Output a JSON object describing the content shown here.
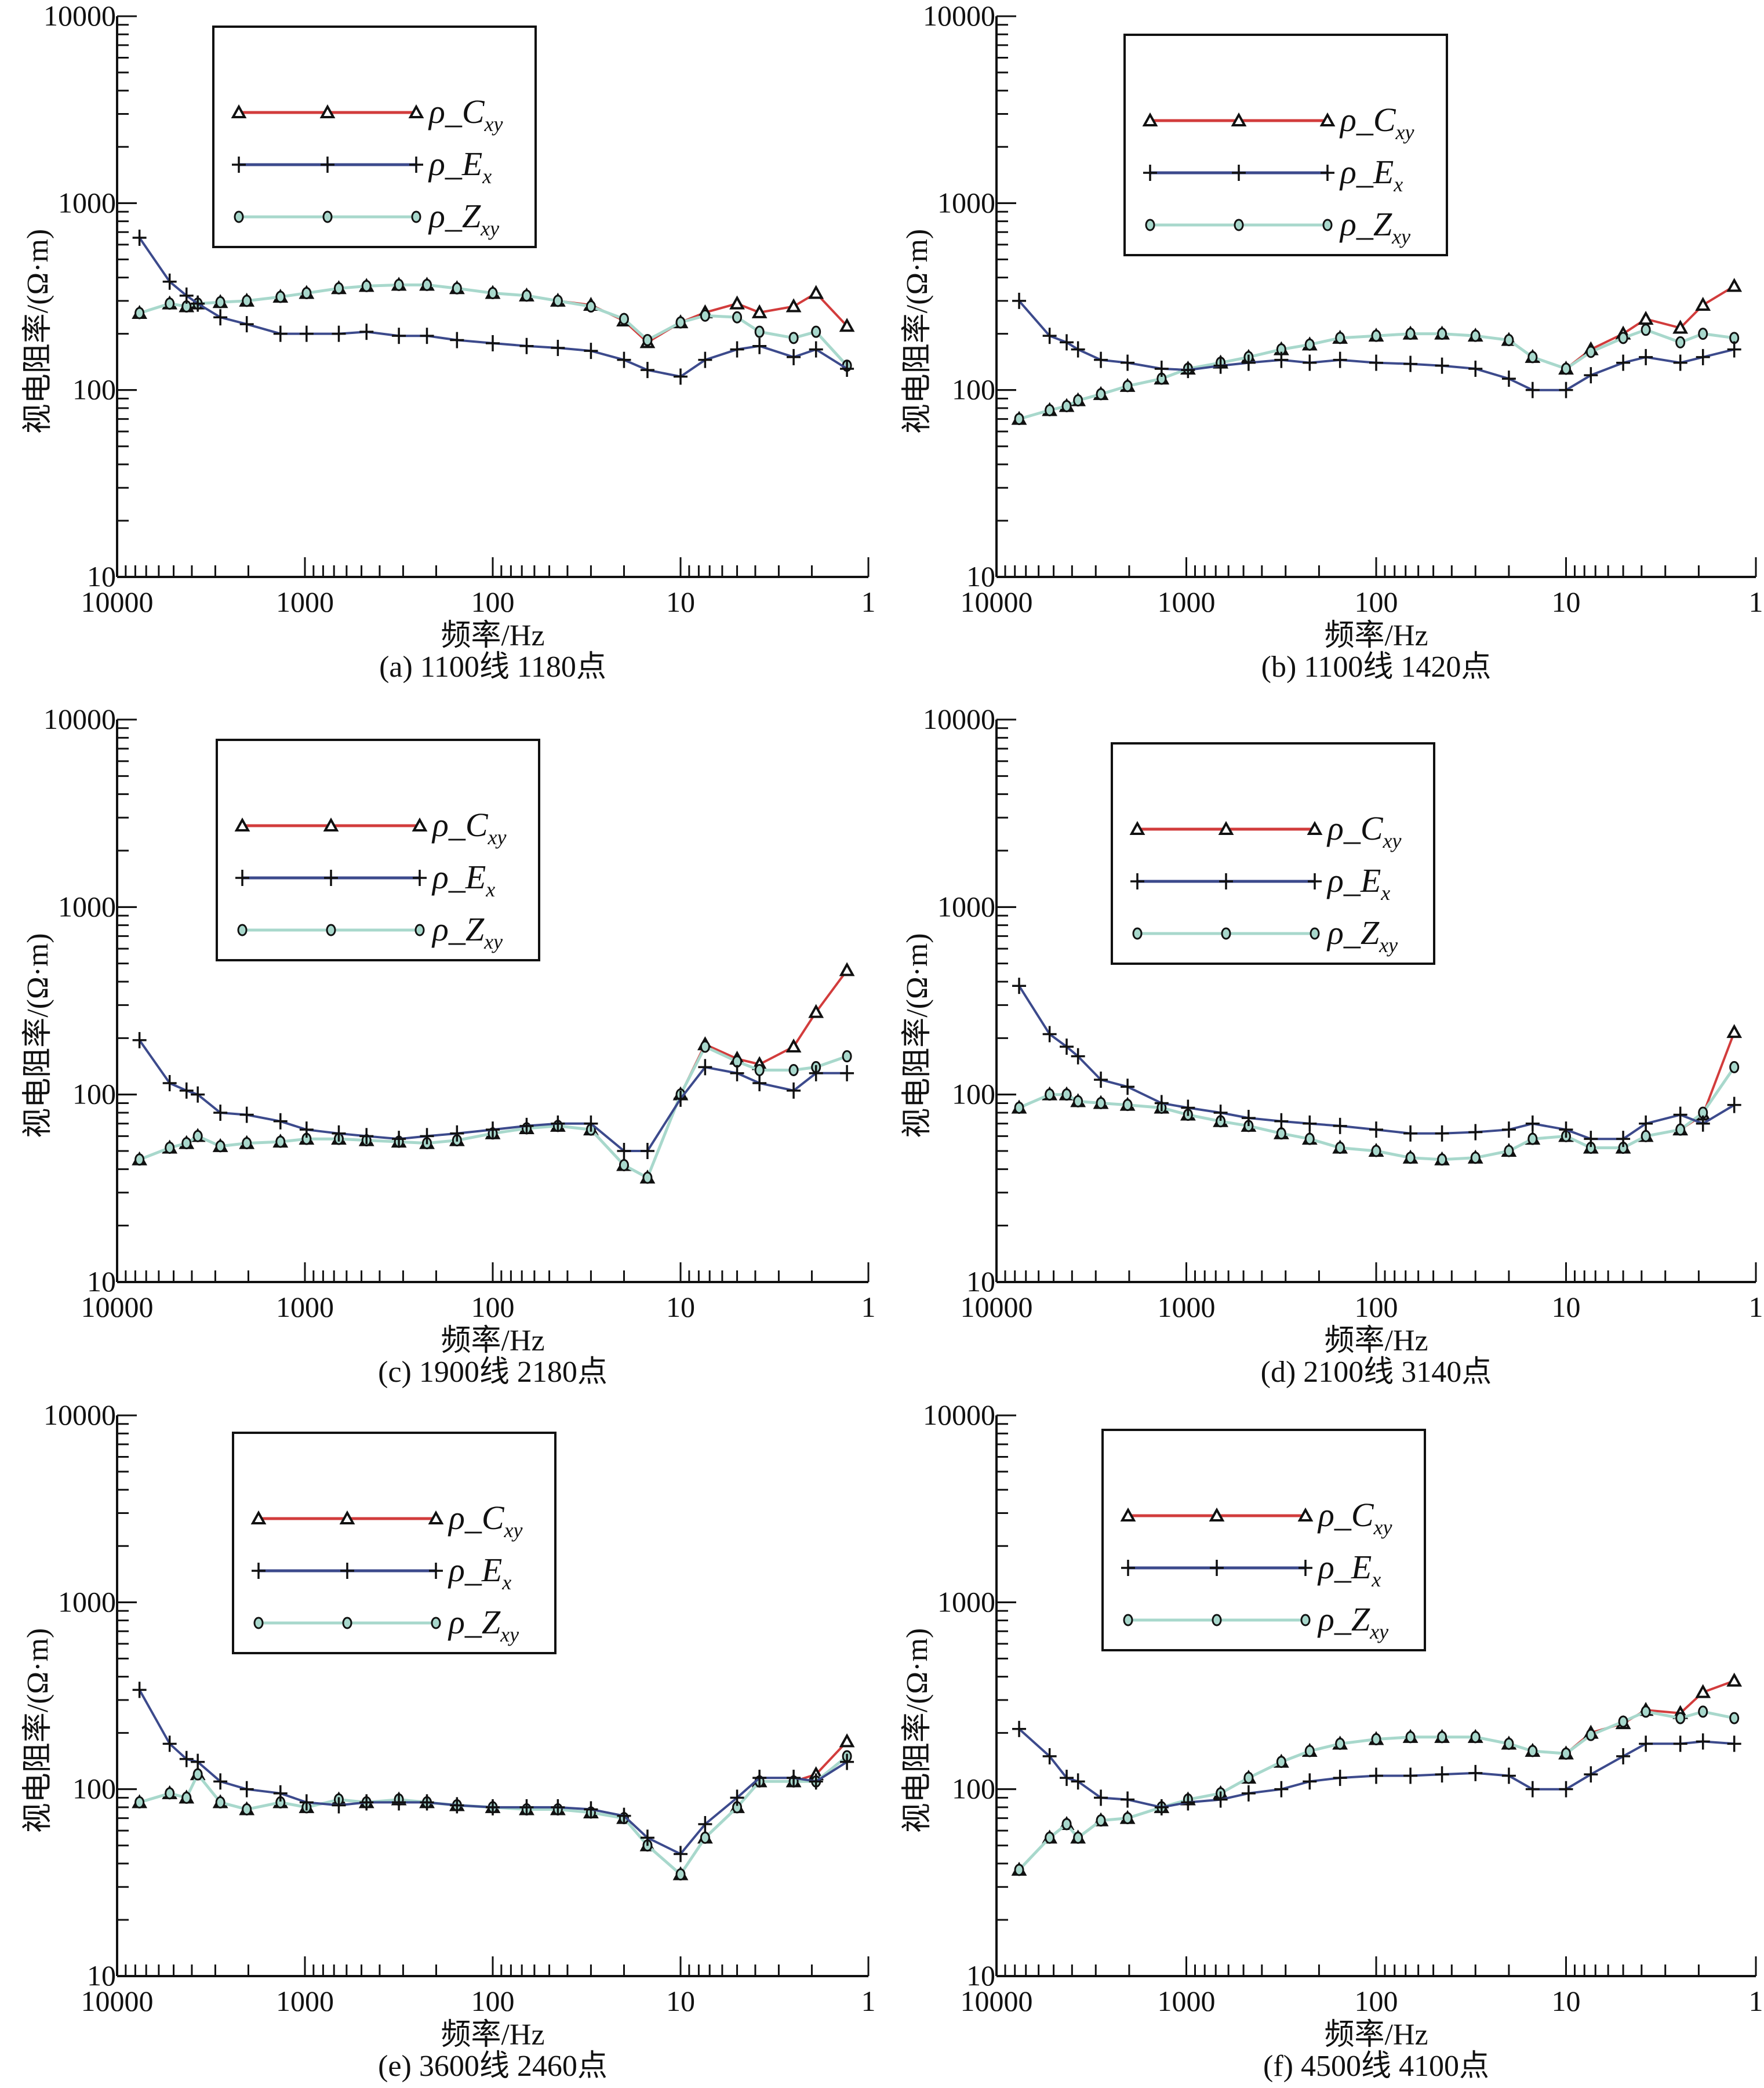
{
  "colors": {
    "C": "#d23c3c",
    "E": "#3c4a8c",
    "Z": "#a8d8cc"
  },
  "chart_data": [
    {
      "type": "line",
      "caption": "(a) 1100线 1180点",
      "xlabel": "频率/Hz",
      "ylabel": "视电阻率/(Ω·m)",
      "xscale": "log",
      "yscale": "log",
      "xlim": [
        10000,
        1
      ],
      "ylim": [
        10,
        10000
      ],
      "xticks": [
        "10000",
        "1000",
        "100",
        "10",
        "1"
      ],
      "yticks": [
        "10",
        "100",
        "1000",
        "10000"
      ],
      "legend": "top-left",
      "x": [
        7600,
        5250,
        4270,
        3720,
        2820,
        2040,
        1350,
        980,
        660,
        470,
        316,
        224,
        155,
        100,
        66,
        45,
        30,
        20,
        15,
        10,
        7.4,
        5,
        3.8,
        2.5,
        1.9,
        1.3
      ],
      "series": [
        {
          "label": "ρ_C",
          "sub": "xy",
          "color": "#d23c3c",
          "marker": "triangle",
          "y": [
            258,
            290,
            280,
            290,
            295,
            300,
            315,
            330,
            350,
            360,
            365,
            365,
            350,
            330,
            320,
            300,
            285,
            235,
            180,
            230,
            260,
            290,
            260,
            280,
            330,
            220
          ]
        },
        {
          "label": "ρ_E",
          "sub": "x",
          "color": "#3c4a8c",
          "marker": "plus",
          "y": [
            653,
            380,
            320,
            290,
            245,
            225,
            200,
            200,
            200,
            205,
            195,
            195,
            185,
            178,
            172,
            168,
            162,
            145,
            128,
            118,
            145,
            165,
            172,
            150,
            165,
            130
          ]
        },
        {
          "label": "ρ_Z",
          "sub": "xy",
          "color": "#a8d8cc",
          "marker": "circle",
          "y": [
            258,
            290,
            280,
            290,
            295,
            300,
            315,
            330,
            350,
            360,
            365,
            365,
            350,
            330,
            320,
            300,
            280,
            240,
            185,
            230,
            250,
            245,
            205,
            190,
            205,
            135
          ]
        }
      ]
    },
    {
      "type": "line",
      "caption": "(b) 1100线 1420点",
      "xlabel": "频率/Hz",
      "ylabel": "视电阻率/(Ω·m)",
      "xscale": "log",
      "yscale": "log",
      "xlim": [
        10000,
        1
      ],
      "ylim": [
        10,
        10000
      ],
      "xticks": [
        "10000",
        "1000",
        "100",
        "10",
        "1"
      ],
      "yticks": [
        "10",
        "100",
        "1000",
        "10000"
      ],
      "legend": "top-center",
      "x": [
        7600,
        5250,
        4270,
        3720,
        2820,
        2040,
        1350,
        980,
        660,
        470,
        316,
        224,
        155,
        100,
        66,
        45,
        30,
        20,
        15,
        10,
        7.4,
        5,
        3.8,
        2.5,
        1.9,
        1.3
      ],
      "series": [
        {
          "label": "ρ_C",
          "sub": "xy",
          "color": "#d23c3c",
          "marker": "triangle",
          "y": [
            70,
            78,
            82,
            88,
            95,
            105,
            115,
            130,
            140,
            150,
            165,
            175,
            190,
            195,
            200,
            200,
            195,
            185,
            150,
            130,
            165,
            200,
            240,
            215,
            285,
            360
          ]
        },
        {
          "label": "ρ_E",
          "sub": "x",
          "color": "#3c4a8c",
          "marker": "plus",
          "y": [
            300,
            195,
            180,
            165,
            145,
            140,
            130,
            128,
            135,
            140,
            145,
            140,
            145,
            140,
            138,
            135,
            130,
            115,
            100,
            100,
            120,
            140,
            150,
            140,
            150,
            165
          ]
        },
        {
          "label": "ρ_Z",
          "sub": "xy",
          "color": "#a8d8cc",
          "marker": "circle",
          "y": [
            70,
            78,
            82,
            88,
            95,
            105,
            115,
            130,
            140,
            150,
            165,
            175,
            190,
            195,
            200,
            200,
            195,
            185,
            150,
            130,
            160,
            190,
            210,
            180,
            200,
            190
          ]
        }
      ]
    },
    {
      "type": "line",
      "caption": "(c) 1900线 2180点",
      "xlabel": "频率/Hz",
      "ylabel": "视电阻率/(Ω·m)",
      "xscale": "log",
      "yscale": "log",
      "xlim": [
        10000,
        1
      ],
      "ylim": [
        10,
        10000
      ],
      "xticks": [
        "10000",
        "1000",
        "100",
        "10",
        "1"
      ],
      "yticks": [
        "10",
        "100",
        "1000",
        "10000"
      ],
      "legend": "top-left",
      "x": [
        7600,
        5250,
        4270,
        3720,
        2820,
        2040,
        1350,
        980,
        660,
        470,
        316,
        224,
        155,
        100,
        66,
        45,
        30,
        20,
        15,
        10,
        7.4,
        5,
        3.8,
        2.5,
        1.9,
        1.3
      ],
      "series": [
        {
          "label": "ρ_C",
          "sub": "xy",
          "color": "#d23c3c",
          "marker": "triangle",
          "y": [
            45,
            52,
            55,
            60,
            53,
            55,
            56,
            58,
            58,
            57,
            56,
            55,
            57,
            62,
            66,
            68,
            65,
            42,
            36,
            100,
            185,
            155,
            145,
            180,
            275,
            460
          ]
        },
        {
          "label": "ρ_E",
          "sub": "x",
          "color": "#3c4a8c",
          "marker": "plus",
          "y": [
            195,
            115,
            105,
            100,
            80,
            78,
            72,
            65,
            62,
            60,
            58,
            60,
            62,
            65,
            68,
            70,
            70,
            50,
            50,
            95,
            140,
            130,
            115,
            105,
            130,
            130
          ]
        },
        {
          "label": "ρ_Z",
          "sub": "xy",
          "color": "#a8d8cc",
          "marker": "circle",
          "y": [
            45,
            52,
            55,
            60,
            53,
            55,
            56,
            58,
            58,
            57,
            56,
            55,
            57,
            62,
            66,
            68,
            65,
            42,
            36,
            100,
            180,
            150,
            135,
            135,
            140,
            160
          ]
        }
      ]
    },
    {
      "type": "line",
      "caption": "(d) 2100线 3140点",
      "xlabel": "频率/Hz",
      "ylabel": "视电阻率/(Ω·m)",
      "xscale": "log",
      "yscale": "log",
      "xlim": [
        10000,
        1
      ],
      "ylim": [
        10,
        10000
      ],
      "xticks": [
        "10000",
        "1000",
        "100",
        "10",
        "1"
      ],
      "yticks": [
        "10",
        "100",
        "1000",
        "10000"
      ],
      "legend": "top-center",
      "x": [
        7600,
        5250,
        4270,
        3720,
        2820,
        2040,
        1350,
        980,
        660,
        470,
        316,
        224,
        155,
        100,
        66,
        45,
        30,
        20,
        15,
        10,
        7.4,
        5,
        3.8,
        2.5,
        1.9,
        1.3
      ],
      "series": [
        {
          "label": "ρ_C",
          "sub": "xy",
          "color": "#d23c3c",
          "marker": "triangle",
          "y": [
            85,
            100,
            100,
            92,
            90,
            88,
            85,
            78,
            72,
            68,
            62,
            58,
            52,
            50,
            46,
            45,
            46,
            50,
            58,
            60,
            52,
            52,
            60,
            65,
            78,
            215
          ]
        },
        {
          "label": "ρ_E",
          "sub": "x",
          "color": "#3c4a8c",
          "marker": "plus",
          "y": [
            380,
            210,
            180,
            160,
            120,
            110,
            90,
            85,
            80,
            75,
            72,
            70,
            68,
            65,
            62,
            62,
            63,
            65,
            70,
            65,
            58,
            58,
            70,
            78,
            70,
            88
          ]
        },
        {
          "label": "ρ_Z",
          "sub": "xy",
          "color": "#a8d8cc",
          "marker": "circle",
          "y": [
            85,
            100,
            100,
            92,
            90,
            88,
            85,
            78,
            72,
            68,
            62,
            58,
            52,
            50,
            46,
            45,
            46,
            50,
            58,
            60,
            52,
            52,
            60,
            65,
            80,
            140
          ]
        }
      ]
    },
    {
      "type": "line",
      "caption": "(e) 3600线 2460点",
      "xlabel": "频率/Hz",
      "ylabel": "视电阻率/(Ω·m)",
      "xscale": "log",
      "yscale": "log",
      "xlim": [
        10000,
        1
      ],
      "ylim": [
        10,
        10000
      ],
      "xticks": [
        "10000",
        "1000",
        "100",
        "10",
        "1"
      ],
      "yticks": [
        "10",
        "100",
        "1000",
        "10000"
      ],
      "legend": "top-center",
      "x": [
        7600,
        5250,
        4270,
        3720,
        2820,
        2040,
        1350,
        980,
        660,
        470,
        316,
        224,
        155,
        100,
        66,
        45,
        30,
        20,
        15,
        10,
        7.4,
        5,
        3.8,
        2.5,
        1.9,
        1.3
      ],
      "series": [
        {
          "label": "ρ_C",
          "sub": "xy",
          "color": "#d23c3c",
          "marker": "triangle",
          "y": [
            85,
            95,
            90,
            120,
            85,
            78,
            85,
            80,
            88,
            85,
            88,
            85,
            82,
            80,
            78,
            78,
            75,
            70,
            50,
            35,
            55,
            80,
            110,
            110,
            120,
            180
          ]
        },
        {
          "label": "ρ_E",
          "sub": "x",
          "color": "#3c4a8c",
          "marker": "plus",
          "y": [
            340,
            175,
            145,
            140,
            110,
            100,
            95,
            85,
            82,
            85,
            85,
            85,
            82,
            80,
            80,
            80,
            78,
            72,
            55,
            45,
            65,
            90,
            115,
            115,
            110,
            140
          ]
        },
        {
          "label": "ρ_Z",
          "sub": "xy",
          "color": "#a8d8cc",
          "marker": "circle",
          "y": [
            85,
            95,
            90,
            120,
            85,
            78,
            85,
            80,
            88,
            85,
            88,
            85,
            82,
            80,
            78,
            78,
            75,
            70,
            50,
            35,
            55,
            80,
            110,
            110,
            110,
            150
          ]
        }
      ]
    },
    {
      "type": "line",
      "caption": "(f) 4500线 4100点",
      "xlabel": "频率/Hz",
      "ylabel": "视电阻率/(Ω·m)",
      "xscale": "log",
      "yscale": "log",
      "xlim": [
        10000,
        1
      ],
      "ylim": [
        10,
        10000
      ],
      "xticks": [
        "10000",
        "1000",
        "100",
        "10",
        "1"
      ],
      "yticks": [
        "10",
        "100",
        "1000",
        "10000"
      ],
      "legend": "top-center",
      "x": [
        7600,
        5250,
        4270,
        3720,
        2820,
        2040,
        1350,
        980,
        660,
        470,
        316,
        224,
        155,
        100,
        66,
        45,
        30,
        20,
        15,
        10,
        7.4,
        5,
        3.8,
        2.5,
        1.9,
        1.3
      ],
      "series": [
        {
          "label": "ρ_C",
          "sub": "xy",
          "color": "#d23c3c",
          "marker": "triangle",
          "y": [
            37,
            55,
            65,
            55,
            68,
            70,
            80,
            88,
            95,
            115,
            140,
            160,
            175,
            185,
            190,
            190,
            190,
            175,
            160,
            155,
            200,
            225,
            265,
            255,
            330,
            380
          ]
        },
        {
          "label": "ρ_E",
          "sub": "x",
          "color": "#3c4a8c",
          "marker": "plus",
          "y": [
            210,
            150,
            115,
            110,
            90,
            88,
            80,
            85,
            88,
            95,
            100,
            110,
            115,
            118,
            118,
            120,
            122,
            118,
            100,
            100,
            120,
            150,
            175,
            175,
            180,
            175
          ]
        },
        {
          "label": "ρ_Z",
          "sub": "xy",
          "color": "#a8d8cc",
          "marker": "circle",
          "y": [
            37,
            55,
            65,
            55,
            68,
            70,
            80,
            88,
            95,
            115,
            140,
            160,
            175,
            185,
            190,
            190,
            190,
            175,
            160,
            155,
            195,
            230,
            260,
            240,
            260,
            240
          ]
        }
      ]
    }
  ]
}
